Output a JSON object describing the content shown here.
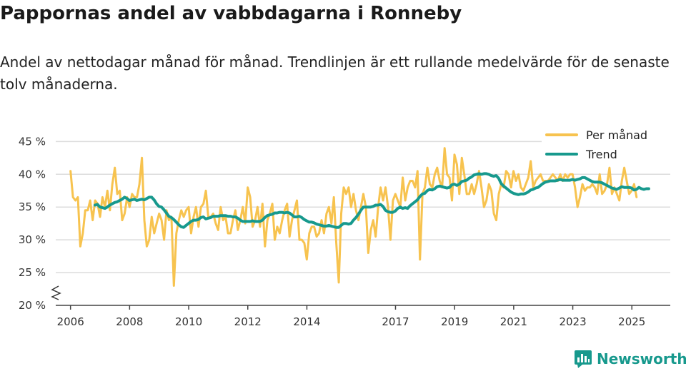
{
  "title": "Pappornas andel av vabbdagarna i Ronneby",
  "subtitle": "Andel av nettodagar månad för månad. Trendlinjen är ett rullande medelvärde för de senaste tolv månaderna.",
  "brand": {
    "name": "Newsworthy",
    "icon": "bar-chart-speech-icon"
  },
  "colors": {
    "per_month": "#f7c34f",
    "trend": "#17998d",
    "grid": "#dcdcdc",
    "axis": "#444444"
  },
  "chart_data": {
    "type": "line",
    "title": "Pappornas andel av vabbdagarna i Ronneby",
    "xlabel": "",
    "ylabel": "",
    "xlim": [
      2005.5,
      2026.3
    ],
    "ylim": [
      20,
      47
    ],
    "y_ticks": [
      20,
      25,
      30,
      35,
      40,
      45
    ],
    "y_tick_labels": [
      "20 %",
      "25 %",
      "30 %",
      "35 %",
      "40 %",
      "45 %"
    ],
    "x_ticks": [
      2006,
      2008,
      2010,
      2012,
      2014,
      2017,
      2019,
      2021,
      2023,
      2025
    ],
    "x_tick_labels": [
      "2006",
      "2008",
      "2010",
      "2012",
      "2014",
      "2017",
      "2019",
      "2021",
      "2023",
      "2025"
    ],
    "y_axis_break": true,
    "legend_position": "top-right",
    "series": [
      {
        "name": "Per månad",
        "x_start": 2006.0,
        "x_step": 0.0833,
        "values": [
          40.5,
          36.5,
          36,
          36.5,
          29,
          31,
          34.5,
          34.5,
          36,
          33,
          36,
          35.5,
          33.5,
          36.5,
          35,
          37.5,
          34.5,
          38.5,
          41,
          37,
          37.5,
          33,
          34,
          36.5,
          35,
          37,
          36.5,
          36.5,
          38.5,
          42.5,
          33,
          29,
          30,
          33.5,
          31,
          32.5,
          34,
          33,
          30,
          34.5,
          33,
          33.5,
          23,
          31,
          33,
          34.5,
          33.5,
          34.5,
          35,
          31,
          33.5,
          35,
          32,
          35,
          35.5,
          37.5,
          33.5,
          33.5,
          34,
          32.5,
          31.5,
          35,
          33,
          33.5,
          31,
          31,
          33,
          34.5,
          31.5,
          33,
          35,
          32.5,
          38,
          36.5,
          32,
          33,
          35,
          32,
          35.5,
          29,
          33,
          34,
          35.5,
          30,
          32,
          31,
          33,
          34.5,
          35.5,
          30.5,
          33,
          34.5,
          36,
          30,
          30,
          29.5,
          27,
          31,
          32,
          32,
          30.5,
          31,
          33,
          31,
          34,
          35,
          32.5,
          36.5,
          29.5,
          23.5,
          34,
          38,
          37,
          38,
          35,
          37,
          34.5,
          33,
          35,
          37,
          35,
          28,
          31.5,
          33,
          30.5,
          35,
          38,
          36,
          38,
          35,
          30,
          36,
          37,
          36,
          35,
          39.5,
          36,
          38,
          39,
          39,
          38,
          40.5,
          27,
          37,
          38,
          41,
          38.5,
          38,
          40,
          41,
          39,
          38,
          44,
          40,
          39.5,
          36,
          43,
          41.5,
          37,
          42.5,
          40,
          37,
          37,
          38.5,
          37,
          38.5,
          40.5,
          38,
          35,
          36,
          38.5,
          37.5,
          34,
          33,
          37,
          38.5,
          38,
          40.5,
          40,
          38,
          40.5,
          39,
          40,
          38,
          37.5,
          38.5,
          39.5,
          42,
          38,
          39,
          39.5,
          40,
          39,
          39,
          39,
          39.5,
          40,
          39.5,
          39,
          40,
          39,
          40,
          39.5,
          40,
          40,
          38,
          35,
          36.5,
          38.5,
          37.5,
          38,
          38,
          38.5,
          38,
          37,
          40,
          37,
          37.5,
          38.5,
          41,
          37,
          38,
          37,
          36,
          39,
          41,
          39,
          37,
          37.5,
          38.5,
          36.5
        ]
      },
      {
        "name": "Trend",
        "x_start": 2006.83,
        "x_step": 0.0833,
        "values": [
          35.3,
          35.4,
          35.0,
          34.9,
          34.8,
          35.0,
          35.3,
          35.5,
          35.7,
          35.8,
          36.0,
          36.2,
          36.5,
          36.3,
          36.0,
          36.1,
          36.2,
          36.0,
          36.1,
          36.2,
          36.1,
          36.3,
          36.5,
          36.5,
          36.1,
          35.5,
          35.1,
          35.0,
          34.6,
          34.1,
          33.6,
          33.4,
          33.1,
          32.7,
          32.3,
          32.0,
          31.9,
          32.2,
          32.5,
          32.8,
          33.0,
          33.0,
          33.1,
          33.4,
          33.5,
          33.2,
          33.3,
          33.4,
          33.6,
          33.6,
          33.6,
          33.7,
          33.7,
          33.7,
          33.6,
          33.6,
          33.5,
          33.5,
          33.3,
          33.0,
          32.8,
          32.8,
          32.8,
          32.8,
          32.9,
          32.8,
          32.8,
          32.8,
          33.0,
          33.4,
          33.7,
          33.8,
          33.9,
          34.1,
          34.1,
          34.2,
          34.2,
          34.1,
          34.2,
          34.1,
          33.8,
          33.5,
          33.5,
          33.6,
          33.4,
          33.1,
          32.9,
          32.7,
          32.7,
          32.6,
          32.4,
          32.3,
          32.2,
          32.1,
          32.1,
          32.2,
          32.1,
          32.0,
          31.9,
          31.9,
          32.2,
          32.5,
          32.5,
          32.4,
          32.5,
          33.0,
          33.4,
          33.9,
          34.5,
          35.0,
          35.0,
          35.0,
          35.0,
          35.1,
          35.3,
          35.3,
          35.4,
          35.1,
          34.5,
          34.3,
          34.2,
          34.2,
          34.4,
          34.8,
          35.0,
          34.8,
          34.9,
          34.8,
          35.2,
          35.5,
          35.8,
          36.1,
          36.6,
          37.0,
          37.1,
          37.5,
          37.7,
          37.6,
          37.8,
          38.1,
          38.2,
          38.1,
          38.0,
          37.9,
          38.0,
          38.4,
          38.5,
          38.3,
          38.5,
          38.9,
          39.0,
          39.1,
          39.4,
          39.6,
          39.9,
          40.0,
          40.1,
          40.0,
          40.1,
          40.1,
          40.0,
          39.8,
          39.7,
          39.8,
          39.4,
          38.6,
          38.2,
          37.9,
          37.6,
          37.3,
          37.1,
          37.0,
          36.9,
          37.0,
          37.0,
          37.1,
          37.3,
          37.6,
          37.7,
          37.9,
          38.0,
          38.3,
          38.6,
          38.8,
          38.9,
          39.0,
          39.0,
          39.0,
          39.1,
          39.2,
          39.1,
          39.1,
          39.1,
          39.1,
          39.2,
          39.1,
          39.2,
          39.3,
          39.5,
          39.5,
          39.3,
          39.1,
          38.9,
          38.8,
          38.8,
          38.8,
          38.7,
          38.5,
          38.3,
          38.1,
          37.9,
          37.8,
          37.7,
          37.9,
          38.1,
          38.0,
          38.0,
          38.0,
          37.9,
          37.6,
          37.7,
          38.0,
          37.8,
          37.7,
          37.8,
          37.8
        ]
      }
    ]
  }
}
